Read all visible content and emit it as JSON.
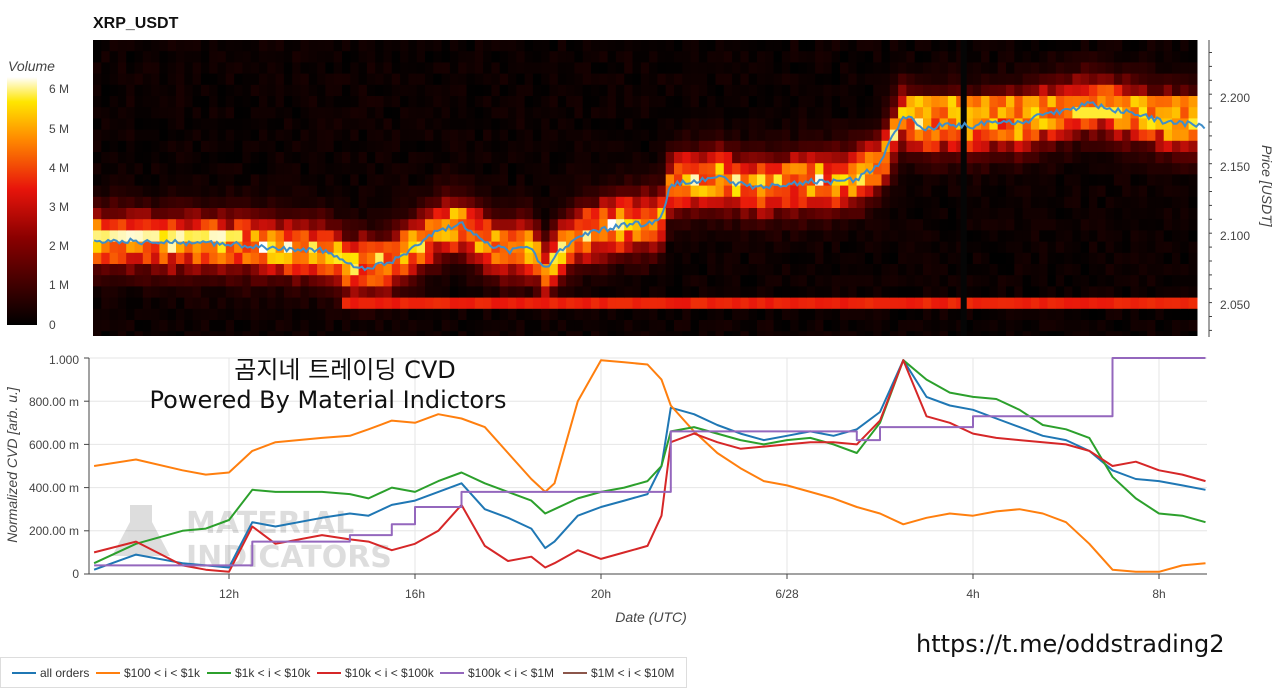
{
  "heatmap": {
    "title": "XRP_USDT",
    "colorbar_label": "Volume",
    "colorbar_ticks": [
      "0",
      "1 M",
      "2 M",
      "3 M",
      "4 M",
      "5 M",
      "6 M"
    ],
    "price_axis_label": "Price [USDT]",
    "price_ticks": [
      "2.050",
      "2.100",
      "2.150",
      "2.200"
    ],
    "colors": {
      "low": "#000000",
      "mid": "#e8150b",
      "high": "#ffffff",
      "price_line": "#3f8ec9",
      "marker": "#050505"
    }
  },
  "cvd": {
    "overlay_title": "곰지네 트레이딩 CVD",
    "overlay_subtitle": "Powered By Material Indictors",
    "watermark_line1": "MATERIAL",
    "watermark_line2": "INDICATORS",
    "ylabel": "Normalized CVD [arb. u.]",
    "xlabel": "Date (UTC)",
    "y_ticks": [
      "0",
      "200.00 m",
      "400.00 m",
      "600.00 m",
      "800.00 m",
      "1.000"
    ],
    "x_ticks": [
      "12h",
      "16h",
      "20h",
      "6/28",
      "4h",
      "8h"
    ]
  },
  "link": "https://t.me/oddstrading2",
  "legend": [
    {
      "label": "all orders",
      "color": "#1f77b4"
    },
    {
      "label": "$100 < i < $1k",
      "color": "#ff7f0e"
    },
    {
      "label": "$1k < i < $10k",
      "color": "#2ca02c"
    },
    {
      "label": "$10k < i < $100k",
      "color": "#d62728"
    },
    {
      "label": "$100k < i < $1M",
      "color": "#9467bd"
    },
    {
      "label": "$1M < i < $10M",
      "color": "#8c564b"
    }
  ],
  "chart_data": [
    {
      "type": "heatmap",
      "title": "XRP_USDT",
      "ylabel": "Price [USDT]",
      "ylim": [
        2.031,
        2.244
      ],
      "color_scale_label": "Volume",
      "color_range": [
        0,
        6800000
      ],
      "x_range_hours": [
        9.1,
        33.0
      ],
      "price_line": {
        "name": "price",
        "x_hours": [
          9.1,
          10.0,
          11.0,
          11.5,
          12.0,
          12.5,
          13.0,
          14.0,
          14.6,
          15.0,
          15.5,
          16.0,
          16.5,
          17.0,
          17.5,
          18.0,
          18.5,
          18.8,
          19.0,
          19.5,
          20.0,
          20.5,
          21.0,
          21.3,
          21.5,
          22.0,
          22.5,
          23.0,
          23.5,
          24.0,
          24.5,
          25.0,
          25.5,
          26.0,
          26.5,
          27.0,
          27.5,
          28.0,
          28.5,
          29.0,
          29.5,
          30.0,
          30.5,
          31.0,
          31.5,
          32.0,
          32.5,
          33.0
        ],
        "y": [
          2.1,
          2.099,
          2.098,
          2.098,
          2.097,
          2.096,
          2.094,
          2.093,
          2.082,
          2.08,
          2.085,
          2.095,
          2.107,
          2.112,
          2.098,
          2.092,
          2.094,
          2.078,
          2.088,
          2.104,
          2.107,
          2.111,
          2.112,
          2.116,
          2.14,
          2.142,
          2.145,
          2.14,
          2.138,
          2.14,
          2.142,
          2.142,
          2.144,
          2.155,
          2.19,
          2.18,
          2.184,
          2.182,
          2.186,
          2.184,
          2.19,
          2.193,
          2.198,
          2.194,
          2.191,
          2.186,
          2.184,
          2.182
        ]
      },
      "marker_x_hours": 27.8
    },
    {
      "type": "line",
      "xlabel": "Date (UTC)",
      "ylabel": "Normalized CVD [arb. u.]",
      "ylim": [
        0,
        1.0
      ],
      "x_ticks": {
        "12h": 12,
        "16h": 16,
        "20h": 20,
        "6/28": 24,
        "4h": 28,
        "8h": 32
      },
      "x_hours": [
        9.1,
        10.0,
        11.0,
        11.5,
        12.0,
        12.5,
        13.0,
        14.0,
        14.6,
        15.0,
        15.5,
        16.0,
        16.5,
        17.0,
        17.5,
        18.0,
        18.5,
        18.8,
        19.0,
        19.5,
        20.0,
        20.5,
        21.0,
        21.3,
        21.5,
        22.0,
        22.5,
        23.0,
        23.5,
        24.0,
        24.5,
        25.0,
        25.5,
        26.0,
        26.5,
        27.0,
        27.5,
        28.0,
        28.5,
        29.0,
        29.5,
        30.0,
        30.5,
        31.0,
        31.5,
        32.0,
        32.5,
        33.0
      ],
      "series": [
        {
          "name": "all orders",
          "values": [
            0.02,
            0.09,
            0.05,
            0.04,
            0.03,
            0.24,
            0.22,
            0.26,
            0.28,
            0.27,
            0.32,
            0.34,
            0.38,
            0.42,
            0.3,
            0.26,
            0.21,
            0.12,
            0.15,
            0.27,
            0.31,
            0.34,
            0.37,
            0.5,
            0.77,
            0.74,
            0.69,
            0.65,
            0.62,
            0.64,
            0.66,
            0.64,
            0.67,
            0.75,
            0.99,
            0.82,
            0.78,
            0.76,
            0.72,
            0.68,
            0.64,
            0.62,
            0.57,
            0.48,
            0.44,
            0.43,
            0.41,
            0.39
          ]
        },
        {
          "name": "$100 < i < $1k",
          "values": [
            0.5,
            0.53,
            0.48,
            0.46,
            0.47,
            0.57,
            0.61,
            0.63,
            0.64,
            0.67,
            0.71,
            0.7,
            0.74,
            0.72,
            0.68,
            0.56,
            0.44,
            0.38,
            0.42,
            0.8,
            0.99,
            0.98,
            0.97,
            0.9,
            0.78,
            0.66,
            0.56,
            0.49,
            0.43,
            0.41,
            0.38,
            0.35,
            0.31,
            0.28,
            0.23,
            0.26,
            0.28,
            0.27,
            0.29,
            0.3,
            0.28,
            0.24,
            0.14,
            0.02,
            0.01,
            0.01,
            0.04,
            0.05
          ]
        },
        {
          "name": "$1k < i < $10k",
          "values": [
            0.05,
            0.14,
            0.2,
            0.21,
            0.25,
            0.39,
            0.38,
            0.38,
            0.37,
            0.35,
            0.4,
            0.38,
            0.43,
            0.47,
            0.42,
            0.38,
            0.34,
            0.28,
            0.3,
            0.35,
            0.38,
            0.4,
            0.43,
            0.5,
            0.66,
            0.68,
            0.65,
            0.62,
            0.6,
            0.62,
            0.63,
            0.6,
            0.56,
            0.7,
            0.99,
            0.9,
            0.84,
            0.82,
            0.81,
            0.76,
            0.69,
            0.67,
            0.63,
            0.45,
            0.35,
            0.28,
            0.27,
            0.24
          ]
        },
        {
          "name": "$10k < i < $100k",
          "values": [
            0.1,
            0.15,
            0.04,
            0.02,
            0.01,
            0.22,
            0.14,
            0.18,
            0.16,
            0.15,
            0.11,
            0.14,
            0.2,
            0.32,
            0.13,
            0.06,
            0.08,
            0.03,
            0.05,
            0.11,
            0.07,
            0.1,
            0.13,
            0.27,
            0.61,
            0.65,
            0.61,
            0.58,
            0.59,
            0.6,
            0.61,
            0.61,
            0.6,
            0.71,
            0.99,
            0.73,
            0.7,
            0.65,
            0.63,
            0.62,
            0.61,
            0.6,
            0.57,
            0.5,
            0.52,
            0.48,
            0.46,
            0.43
          ]
        },
        {
          "name": "$100k < i < $1M",
          "values": [
            0.04,
            0.04,
            0.04,
            0.04,
            0.04,
            0.15,
            0.15,
            0.15,
            0.18,
            0.18,
            0.23,
            0.31,
            0.31,
            0.38,
            0.38,
            0.38,
            0.38,
            0.38,
            0.38,
            0.38,
            0.38,
            0.38,
            0.38,
            0.38,
            0.66,
            0.66,
            0.66,
            0.66,
            0.66,
            0.66,
            0.66,
            0.66,
            0.62,
            0.68,
            0.68,
            0.68,
            0.68,
            0.73,
            0.73,
            0.73,
            0.73,
            0.73,
            0.73,
            1.0,
            1.0,
            1.0,
            1.0,
            1.0
          ]
        },
        {
          "name": "$1M < i < $10M",
          "values": [
            null
          ]
        }
      ]
    }
  ]
}
